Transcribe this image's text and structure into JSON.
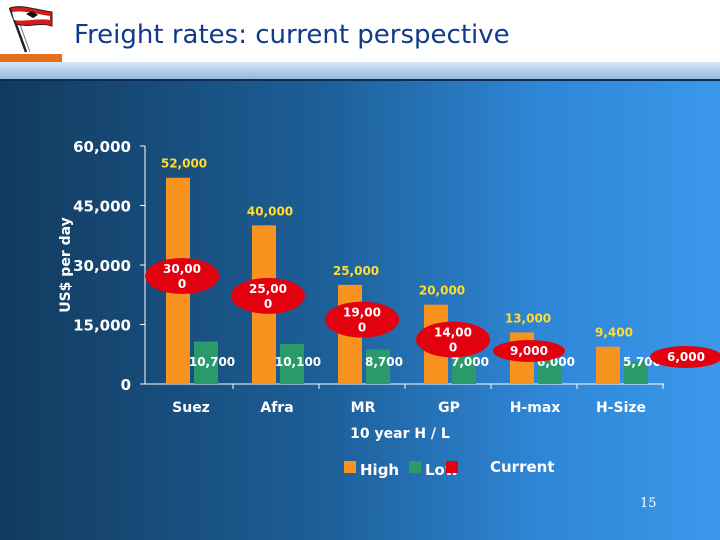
{
  "slide": {
    "title": "Freight rates: current perspective",
    "page_number": "15"
  },
  "colors": {
    "high": "#f7931e",
    "low": "#2a9a6a",
    "current": "#e3000f",
    "label_text": "#ffde2e",
    "axis_text": "#ffffff"
  },
  "chart_data": {
    "type": "bar",
    "title": "",
    "xlabel": "10 year H / L",
    "ylabel": "US$ per day",
    "ylim": [
      0,
      60000
    ],
    "yticks": [
      "0",
      "15,000",
      "30,000",
      "45,000",
      "60,000"
    ],
    "categories": [
      "Suez",
      "Afra",
      "MR",
      "GP",
      "H-max",
      "H-Size"
    ],
    "series": [
      {
        "name": "High",
        "values": [
          52000,
          40000,
          25000,
          20000,
          13000,
          9400
        ],
        "labels": [
          "52,000",
          "40,000",
          "25,000",
          "20,000",
          "13,000",
          "9,400"
        ]
      },
      {
        "name": "Low",
        "values": [
          10700,
          10100,
          8700,
          7000,
          6000,
          5700
        ],
        "labels": [
          "10,700",
          "10,100",
          "8,700",
          "7,000",
          "6,000",
          "5,700"
        ]
      },
      {
        "name": "Current",
        "values": [
          30000,
          25000,
          19000,
          14000,
          9000,
          6000
        ],
        "labels": [
          [
            "30,00",
            "0"
          ],
          [
            "25,00",
            "0"
          ],
          [
            "19,00",
            "0"
          ],
          [
            "14,00",
            "0"
          ],
          [
            "9,000"
          ],
          [
            "6,000"
          ]
        ]
      }
    ],
    "legend": [
      "High",
      "Low",
      "Current"
    ],
    "legend_position": "bottom",
    "grid": false
  }
}
